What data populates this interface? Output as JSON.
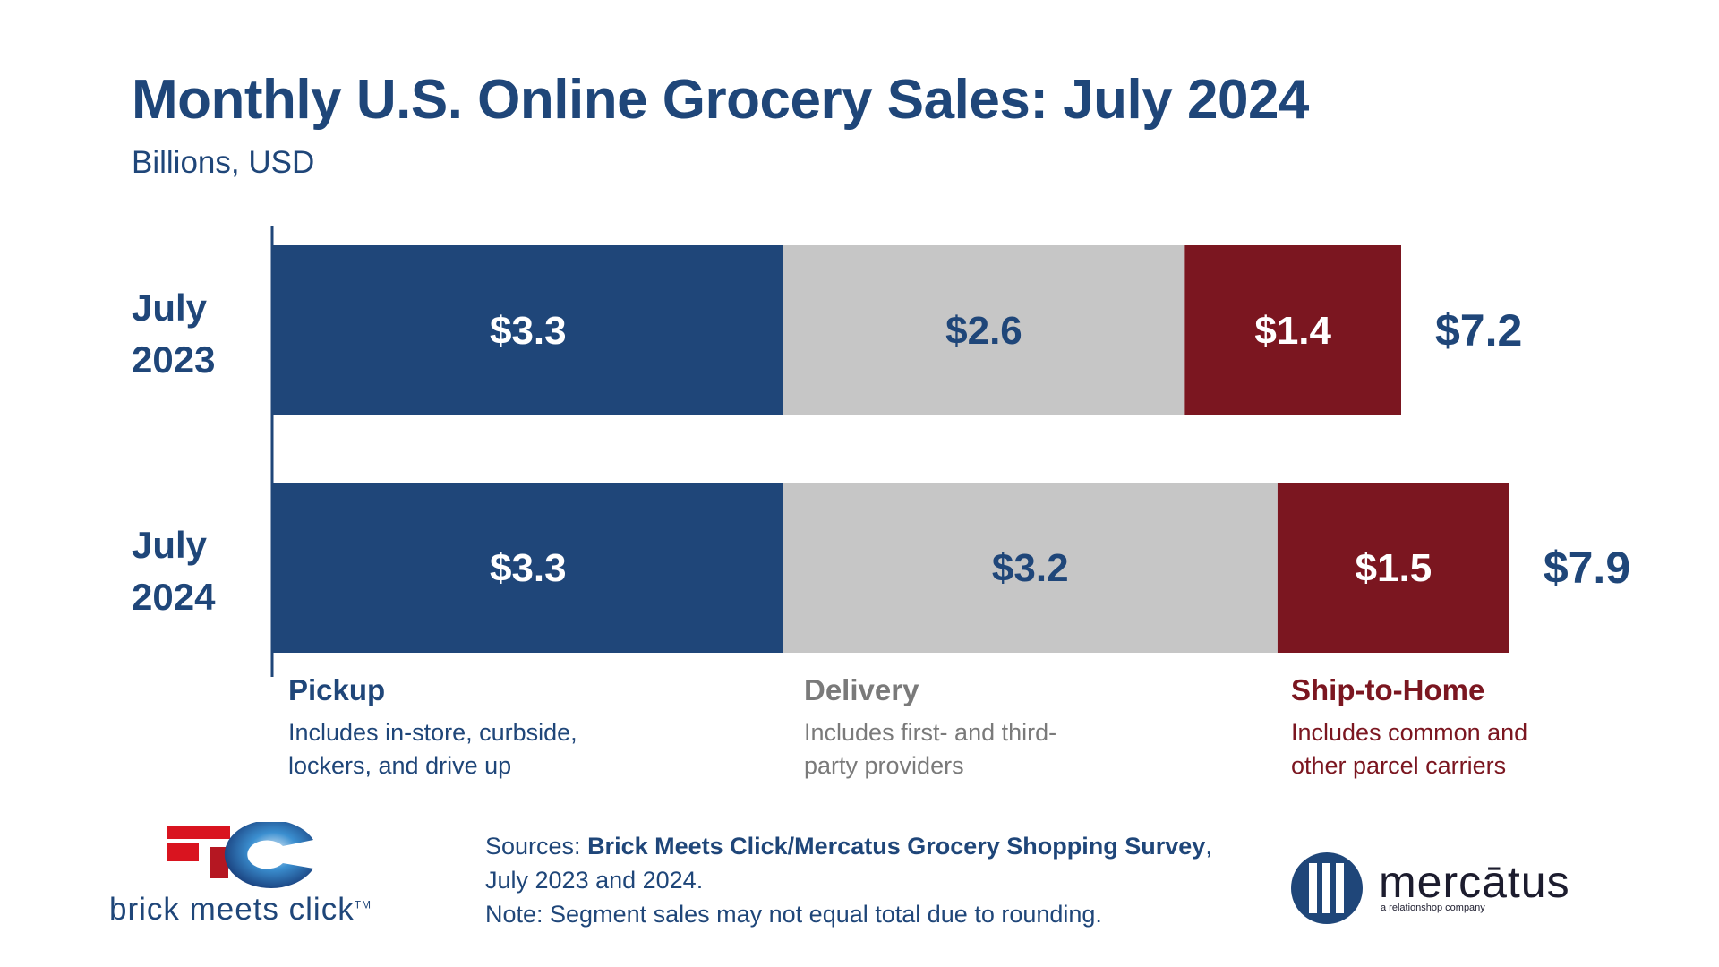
{
  "header": {
    "title": "Monthly U.S. Online Grocery Sales: July 2024",
    "subtitle": "Billions, USD"
  },
  "colors": {
    "pickup": "#1f4679",
    "delivery": "#c6c6c6",
    "ship": "#7b1620",
    "axis": "#1f4679"
  },
  "chart_data": {
    "type": "bar",
    "orientation": "horizontal",
    "stacked": true,
    "title": "Monthly U.S. Online Grocery Sales: July 2024",
    "subtitle": "Billions, USD",
    "categories": [
      "July 2023",
      "July 2024"
    ],
    "category_lines": [
      [
        "July",
        "2023"
      ],
      [
        "July",
        "2024"
      ]
    ],
    "series": [
      {
        "name": "Pickup",
        "values": [
          3.3,
          3.3
        ],
        "labels": [
          "$3.3",
          "$3.3"
        ]
      },
      {
        "name": "Delivery",
        "values": [
          2.6,
          3.2
        ],
        "labels": [
          "$2.6",
          "$3.2"
        ]
      },
      {
        "name": "Ship-to-Home",
        "values": [
          1.4,
          1.5
        ],
        "labels": [
          "$1.4",
          "$1.5"
        ]
      }
    ],
    "totals": [
      7.2,
      7.9
    ],
    "total_labels": [
      "$7.2",
      "$7.9"
    ],
    "xlim": [
      0,
      8.2
    ],
    "grid": false
  },
  "legend": {
    "pickup": {
      "name": "Pickup",
      "desc1": "Includes in-store, curbside,",
      "desc2": "lockers, and drive up"
    },
    "delivery": {
      "name": "Delivery",
      "desc1": "Includes first- and third-",
      "desc2": "party providers"
    },
    "ship": {
      "name": "Ship-to-Home",
      "desc1": "Includes common and",
      "desc2": "other parcel carriers"
    }
  },
  "footer": {
    "sources_prefix": "Sources: ",
    "sources_bold": "Brick Meets Click/Mercatus Grocery Shopping Survey",
    "sources_suffix": ",",
    "sources_line2": "July 2023 and 2024.",
    "note": "Note: Segment sales may not equal total due to rounding.",
    "bmc_logo_text": "brick meets click",
    "bmc_tm": "TM",
    "mercatus_name": "mercātus",
    "mercatus_tagline": "a relationshop company"
  }
}
